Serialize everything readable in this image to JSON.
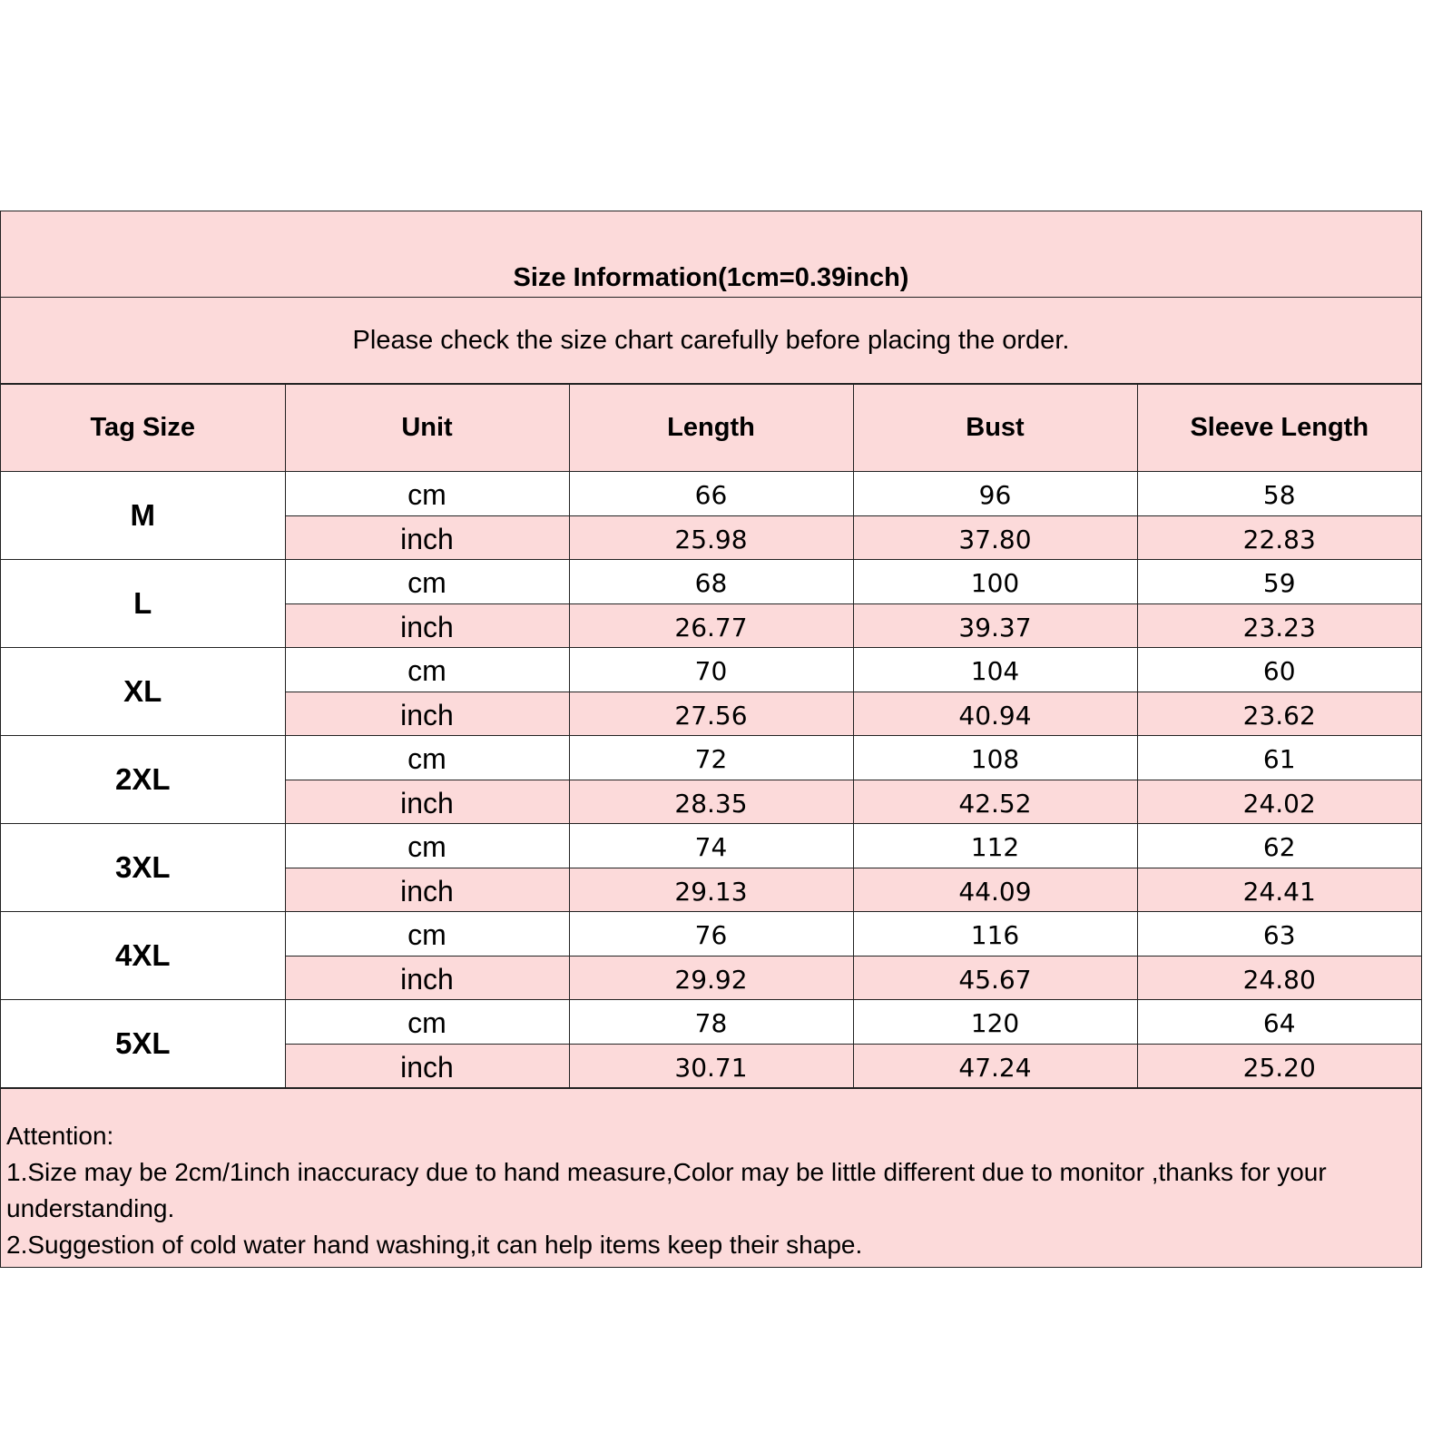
{
  "title": "Size Information(1cm=0.39inch)",
  "subtitle": "Please check the size chart carefully before placing the order.",
  "colors": {
    "header_pink": "#fcdada",
    "border": "#222222",
    "row_white": "#ffffff"
  },
  "headers": [
    "Tag Size",
    "Unit",
    "Length",
    "Bust",
    "Sleeve Length"
  ],
  "rows": [
    {
      "size": "M",
      "cm": [
        "cm",
        "66",
        "96",
        "58"
      ],
      "inch": [
        "inch",
        "25.98",
        "37.80",
        "22.83"
      ]
    },
    {
      "size": "L",
      "cm": [
        "cm",
        "68",
        "100",
        "59"
      ],
      "inch": [
        "inch",
        "26.77",
        "39.37",
        "23.23"
      ]
    },
    {
      "size": "XL",
      "cm": [
        "cm",
        "70",
        "104",
        "60"
      ],
      "inch": [
        "inch",
        "27.56",
        "40.94",
        "23.62"
      ]
    },
    {
      "size": "2XL",
      "cm": [
        "cm",
        "72",
        "108",
        "61"
      ],
      "inch": [
        "inch",
        "28.35",
        "42.52",
        "24.02"
      ]
    },
    {
      "size": "3XL",
      "cm": [
        "cm",
        "74",
        "112",
        "62"
      ],
      "inch": [
        "inch",
        "29.13",
        "44.09",
        "24.41"
      ]
    },
    {
      "size": "4XL",
      "cm": [
        "cm",
        "76",
        "116",
        "63"
      ],
      "inch": [
        "inch",
        "29.92",
        "45.67",
        "24.80"
      ]
    },
    {
      "size": "5XL",
      "cm": [
        "cm",
        "78",
        "120",
        "64"
      ],
      "inch": [
        "inch",
        "30.71",
        "47.24",
        "25.20"
      ]
    }
  ],
  "attention": {
    "heading": "Attention:",
    "lines": [
      "1.Size may be 2cm/1inch inaccuracy due to hand measure,Color may be little different due to monitor ,thanks for your understanding.",
      "2.Suggestion of cold water hand washing,it can help items keep their shape."
    ]
  }
}
